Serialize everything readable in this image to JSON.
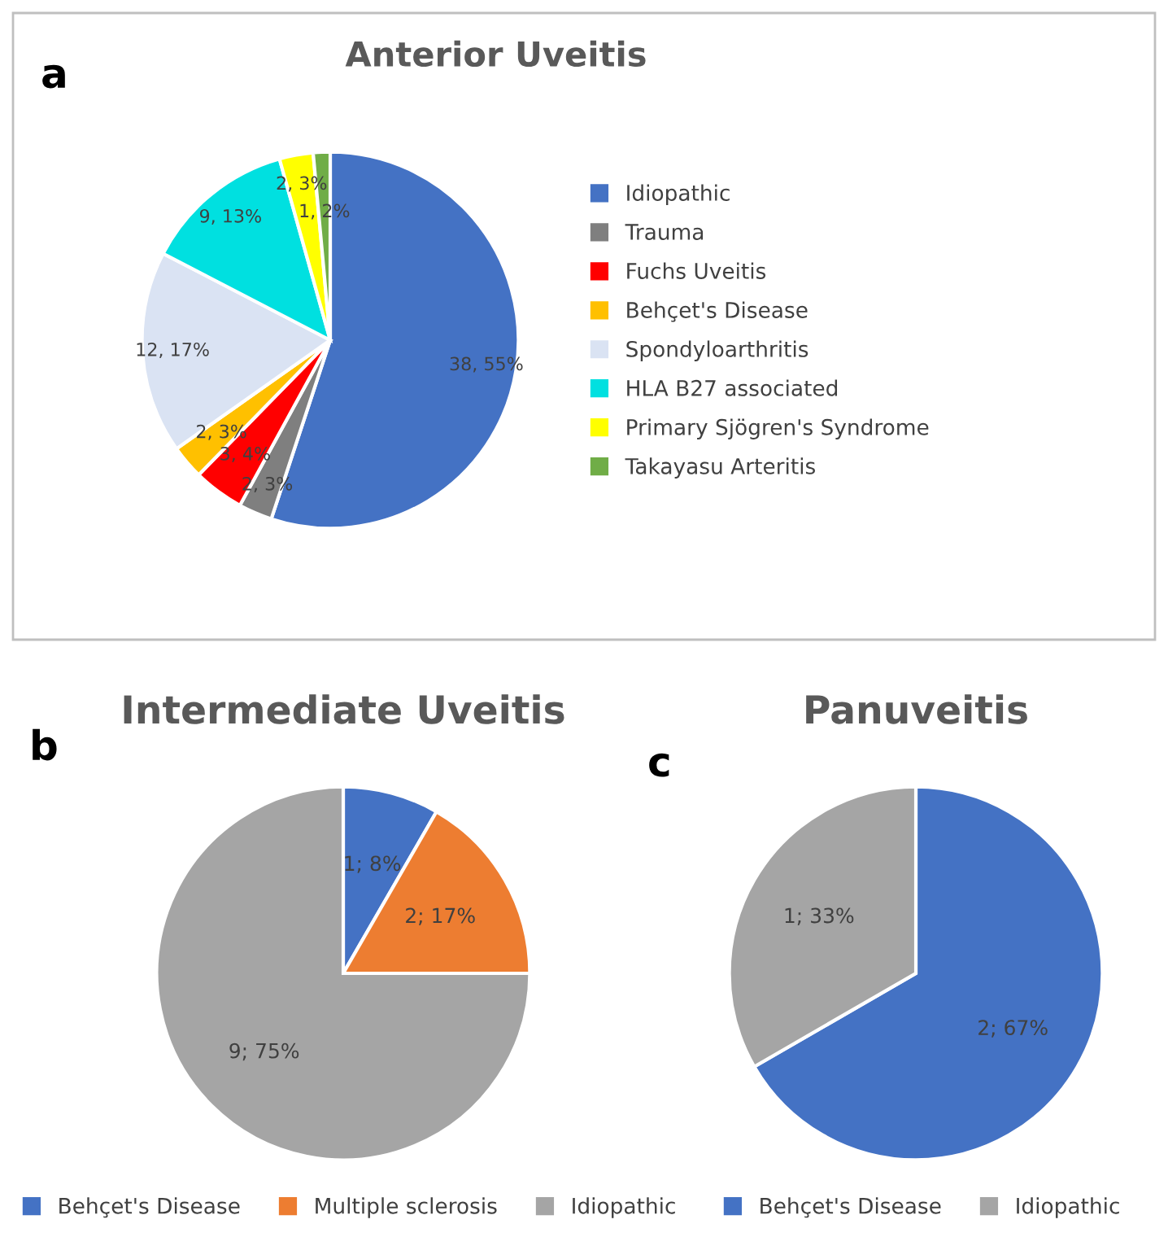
{
  "chart_data": [
    {
      "type": "pie",
      "title": "Anterior Uveitis",
      "annotations": [
        "a"
      ],
      "legend": "right",
      "categories": [
        "Idiopathic",
        "Trauma",
        "Fuchs Uveitis",
        "Behçet's Disease",
        "Spondyloarthritis",
        "HLA B27 associated",
        "Primary Sjögren's Syndrome",
        "Takayasu Arteritis"
      ],
      "values": [
        38,
        2,
        3,
        2,
        12,
        9,
        2,
        1
      ],
      "value_labels": [
        "38, 55%",
        "2, 3%",
        "3, 4%",
        "2, 3%",
        "12, 17%",
        "9, 13%",
        "2, 3%",
        "1, 2%"
      ],
      "colors": [
        "#4472c4",
        "#7f7f7f",
        "#ff0000",
        "#ffc000",
        "#dae3f3",
        "#00e0e0",
        "#ffff00",
        "#70ad47"
      ]
    },
    {
      "type": "pie",
      "title": "Intermediate Uveitis",
      "annotations": [
        "b"
      ],
      "legend": "bottom",
      "categories": [
        "Behçet's Disease",
        "Multiple sclerosis",
        "Idiopathic"
      ],
      "values": [
        1,
        2,
        9
      ],
      "value_labels": [
        "1; 8%",
        "2; 17%",
        "9; 75%"
      ],
      "colors": [
        "#4472c4",
        "#ed7d31",
        "#a5a5a5"
      ]
    },
    {
      "type": "pie",
      "title": "Panuveitis",
      "annotations": [
        "c"
      ],
      "legend": "bottom",
      "categories": [
        "Behçet's Disease",
        "Idiopathic"
      ],
      "values": [
        2,
        1
      ],
      "value_labels": [
        "2; 67%",
        "1; 33%"
      ],
      "colors": [
        "#4472c4",
        "#a5a5a5"
      ]
    }
  ]
}
